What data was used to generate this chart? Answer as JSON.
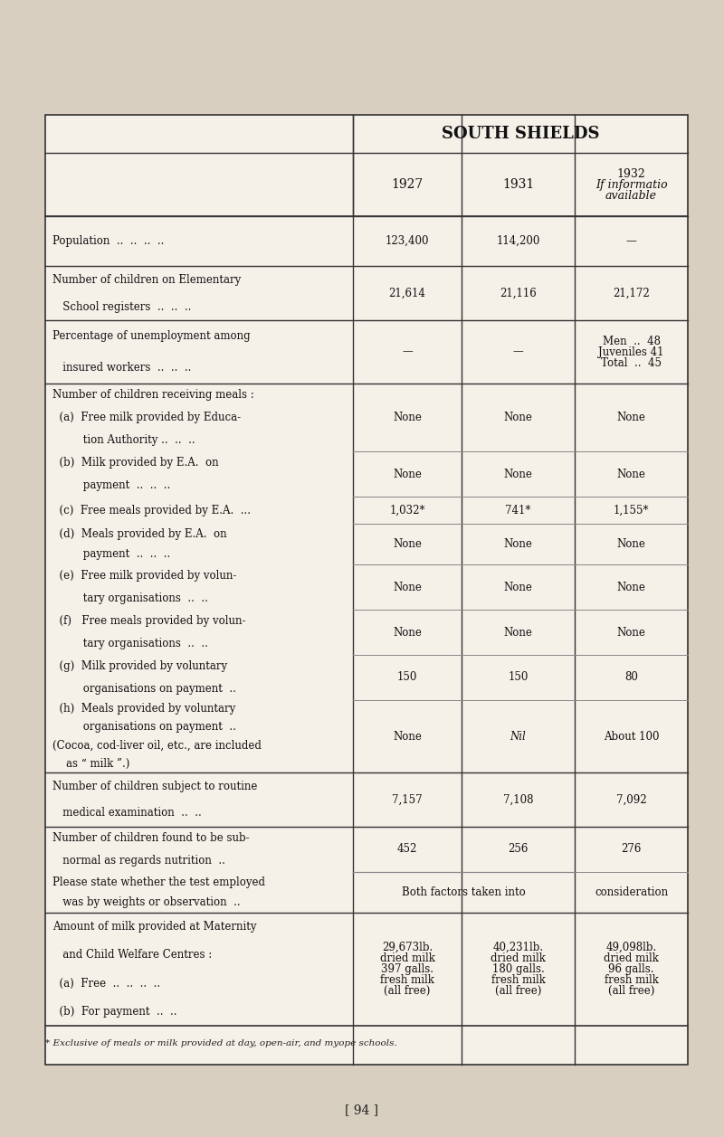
{
  "bg_color": "#e8e0d0",
  "page_bg": "#d8cfc0",
  "title": "SOUTH SHIELDS",
  "col_headers": [
    "1927",
    "1931",
    "1932\nIf informatio\navailable"
  ],
  "footnote": "* Exclusive of meals or milk provided at day, open-air, and myope schools.",
  "page_num": "[ 94 ]",
  "rows": [
    {
      "label": "Population  ..  ..  ..  ..",
      "label_indent": 0,
      "vals": [
        "123,400",
        "114,200",
        "—"
      ],
      "bold_label": false,
      "top_border": true
    },
    {
      "label": "Number of children on Elementary\n    School registers  ..  ..  ..",
      "label_indent": 0,
      "vals": [
        "21,614",
        "21,116",
        "21,172"
      ],
      "bold_label": false,
      "top_border": true
    },
    {
      "label": "Percentage of unemployment among\n    insured workers  ..  ..  ..",
      "label_indent": 0,
      "vals": [
        "—",
        "—",
        "Men  ..  48\nJuveniles 41\nTotal ..  45"
      ],
      "bold_label": false,
      "top_border": true
    },
    {
      "label": "Number of children receiving meals :\n  (a)  Free milk provided by Educa-\n         tion Authority ..  ..  ..",
      "label_indent": 0,
      "vals": [
        "None",
        "None",
        "None"
      ],
      "bold_label": false,
      "top_border": true
    },
    {
      "label": "  (b)  Milk provided by E.A.  on\n         payment  ..  ..  ..",
      "label_indent": 0,
      "vals": [
        "None",
        "None",
        "None"
      ],
      "bold_label": false,
      "top_border": false
    },
    {
      "label": "  (c)  Free meals provided by E.A.  ...\n  (d)  Meals provided by E.A.  on\n         payment  ..  ..  ..",
      "label_indent": 0,
      "vals_c": [
        "1,032*",
        "741*",
        "1,155*"
      ],
      "vals_d": [
        "None",
        "None",
        "None"
      ],
      "bold_label": false,
      "top_border": false,
      "two_sub": true
    },
    {
      "label": "  (e)  Free milk provided by volun-\n         tary organisations  ..  ..",
      "label_indent": 0,
      "vals": [
        "None",
        "None",
        "None"
      ],
      "bold_label": false,
      "top_border": false
    },
    {
      "label": "  (f)  Free meals provided by volun-\n         tary organisations  ..  ..",
      "label_indent": 0,
      "vals": [
        "None",
        "None",
        "None"
      ],
      "bold_label": false,
      "top_border": false
    },
    {
      "label": "  (g)  Milk provided by voluntary\n         organisations on payment  ..",
      "label_indent": 0,
      "vals": [
        "150",
        "150",
        "80"
      ],
      "bold_label": false,
      "top_border": false
    },
    {
      "label": "  (h)  Meals provided by voluntary\n         organisations on payment  ..\n(Cocoa, cod-liver oil, etc., are included\n    as “ milk ”.)",
      "label_indent": 0,
      "vals": [
        "None",
        "Nil",
        "About 100"
      ],
      "bold_label": false,
      "top_border": false
    },
    {
      "label": "Number of children subject to routine\n    medical examination  ..  ..",
      "label_indent": 0,
      "vals": [
        "7,157",
        "7,108",
        "7,092"
      ],
      "bold_label": false,
      "top_border": true
    },
    {
      "label": "Number of children found to be sub-\n    normal as regards nutrition  ..\nPlease state whether the test employed\n    was by weights or observation  ..",
      "label_indent": 0,
      "vals_top": [
        "452",
        "256",
        "276"
      ],
      "vals_bot": [
        "Both factors taken into",
        "",
        "consideration"
      ],
      "bold_label": false,
      "top_border": true,
      "two_sub": false,
      "split_row": true
    },
    {
      "label": "Amount of milk provided at Maternity\n    and Child Welfare Centres :\n  (a)  Free  ..  ..  ..  ..\n  (b)  For payment  ..  ..",
      "label_indent": 0,
      "vals": [
        "29,673lb.\ndried milk\n397 galls.\nfresh milk\n(all free)",
        "40,231lb.\ndried milk\n180 galls.\nfresh milk\n(all free)",
        "49,098lb.\ndried milk\n96 galls.\nfresh milk\n(all free)"
      ],
      "bold_label": false,
      "top_border": true
    }
  ]
}
